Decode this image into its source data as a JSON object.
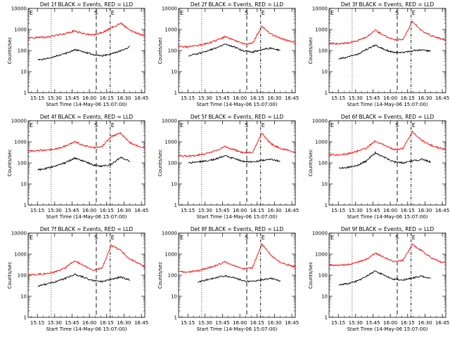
{
  "figure": {
    "xlabel": "Start Time (14-May-06 15:07:00)",
    "ylabel": "Counts/sec",
    "x_ticks": [
      "15:15",
      "15:30",
      "15:45",
      "16:00",
      "16:15",
      "16:30",
      "16:45"
    ],
    "y_ticks": [
      "1",
      "10",
      "100",
      "1000",
      "10000"
    ],
    "colors": {
      "events": "#000000",
      "lld": "#ff0000"
    }
  },
  "chart_data": [
    {
      "type": "line",
      "title": "Det 1f BLACK = Events, RED = LLD",
      "scale_y": "log",
      "ylim": [
        1,
        10000
      ],
      "x": [
        "15:07",
        "15:15",
        "15:23",
        "15:31",
        "15:39",
        "15:47",
        "15:55",
        "16:03",
        "16:11",
        "16:19",
        "16:27",
        "16:35",
        "16:43",
        "16:48"
      ],
      "series": [
        {
          "values": [
            null,
            35,
            42,
            55,
            70,
            110,
            90,
            65,
            55,
            70,
            95,
            150,
            null,
            null
          ]
        },
        {
          "values": [
            380,
            420,
            430,
            520,
            650,
            850,
            640,
            540,
            700,
            1200,
            2000,
            950,
            600,
            520
          ]
        }
      ],
      "markers": {
        "S": "16:06",
        "E": "16:18"
      }
    },
    {
      "type": "line",
      "title": "Det 2f BLACK = Events, RED = LLD",
      "scale_y": "log",
      "ylim": [
        1,
        10000
      ],
      "x": [
        "15:07",
        "15:15",
        "15:23",
        "15:31",
        "15:39",
        "15:47",
        "15:55",
        "16:03",
        "16:11",
        "16:19",
        "16:27",
        "16:35",
        "16:43",
        "16:48"
      ],
      "series": [
        {
          "values": [
            null,
            55,
            70,
            90,
            130,
            200,
            150,
            95,
            85,
            110,
            130,
            100,
            null,
            null
          ]
        },
        {
          "values": [
            160,
            150,
            170,
            210,
            300,
            450,
            320,
            210,
            220,
            1400,
            600,
            380,
            280,
            250
          ]
        }
      ],
      "markers": {
        "S": "16:06",
        "E": "16:18"
      }
    },
    {
      "type": "line",
      "title": "Det 3f BLACK = Events, RED = LLD",
      "scale_y": "log",
      "ylim": [
        1,
        10000
      ],
      "x": [
        "15:07",
        "15:15",
        "15:23",
        "15:31",
        "15:39",
        "15:47",
        "15:55",
        "16:03",
        "16:11",
        "16:19",
        "16:27",
        "16:35",
        "16:43",
        "16:48"
      ],
      "series": [
        {
          "values": [
            null,
            40,
            50,
            65,
            110,
            180,
            110,
            80,
            80,
            95,
            110,
            90,
            null,
            null
          ]
        },
        {
          "values": [
            220,
            210,
            230,
            290,
            420,
            900,
            500,
            320,
            340,
            2400,
            900,
            520,
            380,
            330
          ]
        }
      ],
      "markers": {
        "S": "16:06",
        "E": "16:18"
      }
    },
    {
      "type": "line",
      "title": "Det 4f BLACK = Events, RED = LLD",
      "scale_y": "log",
      "ylim": [
        1,
        10000
      ],
      "x": [
        "15:07",
        "15:15",
        "15:23",
        "15:31",
        "15:39",
        "15:47",
        "15:55",
        "16:03",
        "16:11",
        "16:19",
        "16:27",
        "16:35",
        "16:43",
        "16:48"
      ],
      "series": [
        {
          "values": [
            null,
            45,
            55,
            70,
            100,
            170,
            120,
            80,
            70,
            85,
            180,
            120,
            null,
            null
          ]
        },
        {
          "values": [
            350,
            380,
            400,
            470,
            620,
            1000,
            700,
            520,
            600,
            1800,
            2500,
            900,
            600,
            500
          ]
        }
      ],
      "markers": {
        "S": "16:06",
        "E": "16:18"
      }
    },
    {
      "type": "line",
      "title": "Det 5f BLACK = Events, RED = LLD",
      "scale_y": "log",
      "ylim": [
        1,
        10000
      ],
      "x": [
        "15:07",
        "15:15",
        "15:23",
        "15:31",
        "15:39",
        "15:47",
        "15:55",
        "16:03",
        "16:11",
        "16:19",
        "16:27",
        "16:35",
        "16:43",
        "16:48"
      ],
      "series": [
        {
          "values": [
            null,
            100,
            110,
            125,
            150,
            220,
            160,
            120,
            110,
            130,
            150,
            120,
            null,
            null
          ]
        },
        {
          "values": [
            220,
            210,
            230,
            280,
            380,
            600,
            420,
            300,
            320,
            2500,
            800,
            480,
            380,
            320
          ]
        }
      ],
      "markers": {
        "S": "16:06",
        "E": "16:18"
      }
    },
    {
      "type": "line",
      "title": "Det 6f BLACK = Events, RED = LLD",
      "scale_y": "log",
      "ylim": [
        1,
        10000
      ],
      "x": [
        "15:07",
        "15:15",
        "15:23",
        "15:31",
        "15:39",
        "15:47",
        "15:55",
        "16:03",
        "16:11",
        "16:19",
        "16:27",
        "16:35",
        "16:43",
        "16:48"
      ],
      "series": [
        {
          "values": [
            null,
            55,
            60,
            75,
            120,
            300,
            180,
            110,
            100,
            120,
            150,
            110,
            null,
            null
          ]
        },
        {
          "values": [
            250,
            240,
            270,
            350,
            500,
            1100,
            700,
            420,
            480,
            3000,
            1200,
            700,
            500,
            420
          ]
        }
      ],
      "markers": {
        "S": "16:06",
        "E": "16:18"
      }
    },
    {
      "type": "line",
      "title": "Det 7f BLACK = Events, RED = LLD",
      "scale_y": "log",
      "ylim": [
        1,
        10000
      ],
      "x": [
        "15:07",
        "15:15",
        "15:23",
        "15:31",
        "15:39",
        "15:47",
        "15:55",
        "16:03",
        "16:11",
        "16:19",
        "16:27",
        "16:35",
        "16:43",
        "16:48"
      ],
      "series": [
        {
          "values": [
            null,
            30,
            38,
            50,
            70,
            110,
            80,
            55,
            50,
            65,
            80,
            60,
            null,
            null
          ]
        },
        {
          "values": [
            100,
            110,
            120,
            150,
            220,
            480,
            300,
            170,
            220,
            2600,
            1500,
            600,
            350,
            250
          ]
        }
      ],
      "markers": {
        "S": "16:06",
        "E": "16:18"
      }
    },
    {
      "type": "line",
      "title": "Det 8f BLACK = Events, RED = LLD",
      "scale_y": "log",
      "ylim": [
        1,
        10000
      ],
      "x": [
        "15:07",
        "15:15",
        "15:23",
        "15:31",
        "15:39",
        "15:47",
        "15:55",
        "16:03",
        "16:11",
        "16:19",
        "16:27",
        "16:35",
        "16:43",
        "16:48"
      ],
      "series": [
        {
          "values": [
            null,
            null,
            45,
            60,
            75,
            95,
            75,
            55,
            50,
            60,
            70,
            55,
            null,
            null
          ]
        },
        {
          "values": [
            150,
            140,
            160,
            210,
            280,
            420,
            300,
            200,
            230,
            3000,
            900,
            400,
            300,
            250
          ]
        }
      ],
      "markers": {
        "S": "16:06",
        "E": "16:18"
      }
    },
    {
      "type": "line",
      "title": "Det 9f BLACK = Events, RED = LLD",
      "scale_y": "log",
      "ylim": [
        1,
        10000
      ],
      "x": [
        "15:07",
        "15:15",
        "15:23",
        "15:31",
        "15:39",
        "15:47",
        "15:55",
        "16:03",
        "16:11",
        "16:19",
        "16:27",
        "16:35",
        "16:43",
        "16:48"
      ],
      "series": [
        {
          "values": [
            null,
            35,
            40,
            52,
            85,
            160,
            95,
            65,
            60,
            75,
            90,
            70,
            null,
            null
          ]
        },
        {
          "values": [
            300,
            290,
            320,
            400,
            550,
            1100,
            700,
            450,
            520,
            2800,
            1500,
            700,
            450,
            380
          ]
        }
      ],
      "markers": {
        "S": "16:06",
        "E": "16:18"
      }
    }
  ]
}
